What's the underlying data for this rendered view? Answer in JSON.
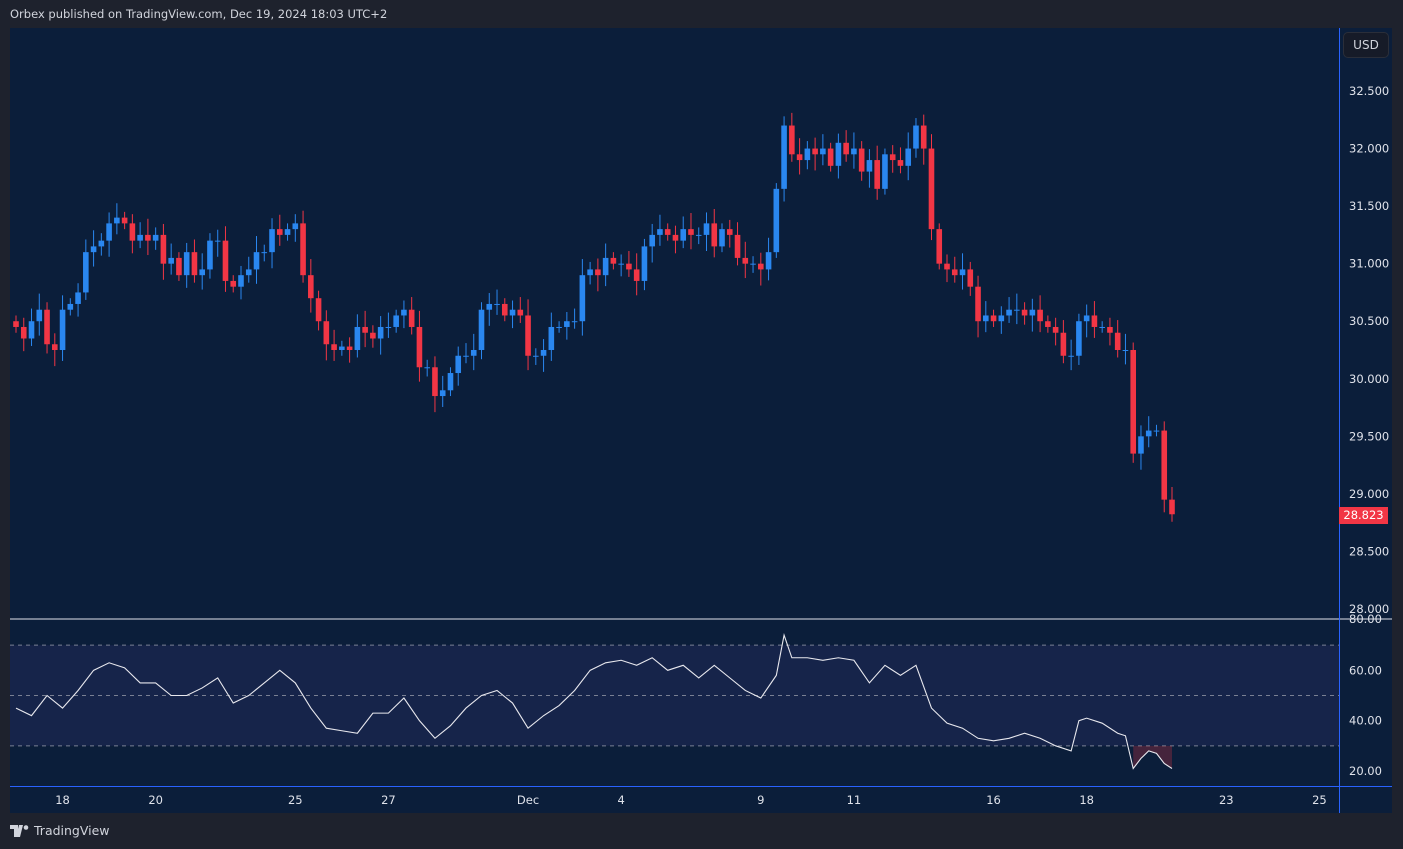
{
  "header": {
    "published": "Orbex published on TradingView.com, Dec 19, 2024 18:03 UTC+2"
  },
  "currency_button": "USD",
  "footer": {
    "brand": "TradingView"
  },
  "colors": {
    "up": "#2a87f0",
    "down": "#f23645",
    "rsi_line": "#e8e8ee",
    "band": "#16244a",
    "bg": "#0b1e3a"
  },
  "chart_data": [
    {
      "type": "candlestick",
      "title": "Price",
      "last_price_label": "28.823",
      "yticks": [
        "32.500",
        "32.000",
        "31.500",
        "31.000",
        "30.500",
        "30.000",
        "29.500",
        "29.000",
        "28.500",
        "28.000"
      ],
      "ylim": [
        28.0,
        32.5
      ],
      "first_open": 30.5,
      "closes": [
        30.45,
        30.35,
        30.5,
        30.6,
        30.3,
        30.25,
        30.6,
        30.65,
        30.75,
        31.1,
        31.15,
        31.2,
        31.35,
        31.4,
        31.35,
        31.2,
        31.25,
        31.2,
        31.25,
        31.0,
        31.05,
        30.9,
        31.1,
        30.9,
        30.95,
        31.2,
        31.2,
        30.85,
        30.8,
        30.9,
        30.95,
        31.1,
        31.1,
        31.3,
        31.25,
        31.3,
        31.35,
        30.9,
        30.7,
        30.5,
        30.3,
        30.25,
        30.28,
        30.25,
        30.45,
        30.4,
        30.35,
        30.45,
        30.45,
        30.55,
        30.6,
        30.45,
        30.1,
        30.1,
        29.85,
        29.9,
        30.05,
        30.2,
        30.2,
        30.25,
        30.6,
        30.65,
        30.65,
        30.55,
        30.6,
        30.55,
        30.2,
        30.2,
        30.25,
        30.45,
        30.45,
        30.5,
        30.5,
        30.9,
        30.95,
        30.9,
        31.05,
        31.0,
        31.0,
        30.95,
        30.85,
        31.15,
        31.25,
        31.3,
        31.25,
        31.2,
        31.3,
        31.25,
        31.25,
        31.35,
        31.15,
        31.3,
        31.25,
        31.05,
        31.0,
        31.0,
        30.95,
        31.1,
        31.65,
        32.2,
        31.95,
        31.9,
        32.0,
        31.95,
        32.0,
        31.85,
        32.05,
        31.95,
        32.0,
        31.8,
        31.9,
        31.65,
        31.95,
        31.9,
        31.85,
        32.0,
        32.2,
        32.0,
        31.3,
        31.0,
        30.95,
        30.9,
        30.95,
        30.8,
        30.5,
        30.55,
        30.5,
        30.55,
        30.6,
        30.6,
        30.55,
        30.6,
        30.5,
        30.45,
        30.4,
        30.2,
        30.2,
        30.5,
        30.55,
        30.45,
        30.45,
        30.4,
        30.25,
        30.25,
        29.35,
        29.5,
        29.55,
        29.55,
        28.95,
        28.823
      ]
    },
    {
      "type": "line",
      "title": "RSI",
      "ylim": [
        20,
        80
      ],
      "yticks": [
        "80.00",
        "60.00",
        "40.00",
        "20.00"
      ],
      "levels": [
        70,
        50,
        30
      ],
      "points": [
        [
          0,
          45
        ],
        [
          2,
          42
        ],
        [
          4,
          50
        ],
        [
          6,
          45
        ],
        [
          8,
          52
        ],
        [
          10,
          60
        ],
        [
          12,
          63
        ],
        [
          14,
          61
        ],
        [
          16,
          55
        ],
        [
          18,
          55
        ],
        [
          20,
          50
        ],
        [
          22,
          50
        ],
        [
          24,
          53
        ],
        [
          26,
          57
        ],
        [
          28,
          47
        ],
        [
          30,
          50
        ],
        [
          32,
          55
        ],
        [
          34,
          60
        ],
        [
          36,
          55
        ],
        [
          38,
          45
        ],
        [
          40,
          37
        ],
        [
          42,
          36
        ],
        [
          44,
          35
        ],
        [
          46,
          43
        ],
        [
          48,
          43
        ],
        [
          50,
          49
        ],
        [
          52,
          40
        ],
        [
          54,
          33
        ],
        [
          56,
          38
        ],
        [
          58,
          45
        ],
        [
          60,
          50
        ],
        [
          62,
          52
        ],
        [
          64,
          47
        ],
        [
          66,
          37
        ],
        [
          68,
          42
        ],
        [
          70,
          46
        ],
        [
          72,
          52
        ],
        [
          74,
          60
        ],
        [
          76,
          63
        ],
        [
          78,
          64
        ],
        [
          80,
          62
        ],
        [
          82,
          65
        ],
        [
          84,
          60
        ],
        [
          86,
          62
        ],
        [
          88,
          57
        ],
        [
          90,
          62
        ],
        [
          92,
          57
        ],
        [
          94,
          52
        ],
        [
          96,
          49
        ],
        [
          98,
          58
        ],
        [
          99,
          74
        ],
        [
          100,
          65
        ],
        [
          102,
          65
        ],
        [
          104,
          64
        ],
        [
          106,
          65
        ],
        [
          108,
          64
        ],
        [
          110,
          55
        ],
        [
          112,
          62
        ],
        [
          114,
          58
        ],
        [
          116,
          62
        ],
        [
          118,
          45
        ],
        [
          120,
          39
        ],
        [
          122,
          37
        ],
        [
          124,
          33
        ],
        [
          126,
          32
        ],
        [
          128,
          33
        ],
        [
          130,
          35
        ],
        [
          132,
          33
        ],
        [
          134,
          30
        ],
        [
          136,
          28
        ],
        [
          137,
          40
        ],
        [
          138,
          41
        ],
        [
          140,
          39
        ],
        [
          142,
          35
        ],
        [
          143,
          34
        ],
        [
          144,
          21
        ],
        [
          145,
          25
        ],
        [
          146,
          28
        ],
        [
          147,
          27
        ],
        [
          148,
          23
        ],
        [
          149,
          21
        ]
      ]
    }
  ],
  "xaxis": {
    "labels": [
      "18",
      "20",
      "25",
      "27",
      "Dec",
      "4",
      "9",
      "11",
      "16",
      "18",
      "23",
      "25"
    ],
    "candle_index": [
      6,
      18,
      36,
      48,
      66,
      78,
      96,
      108,
      126,
      138,
      156,
      168
    ]
  }
}
